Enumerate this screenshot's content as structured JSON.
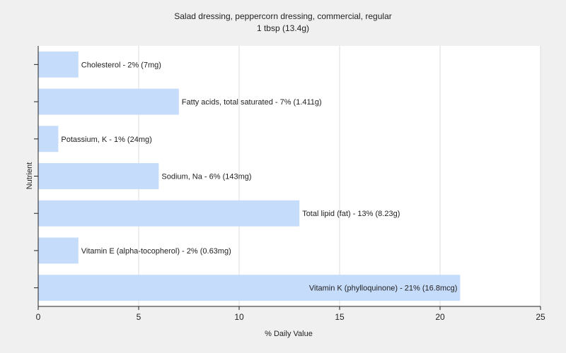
{
  "chart_data": {
    "type": "bar",
    "orientation": "horizontal",
    "title": "Salad dressing, peppercorn dressing, commercial, regular",
    "subtitle": "1 tbsp (13.4g)",
    "xlabel": "% Daily Value",
    "ylabel": "Nutrient",
    "xlim": [
      0,
      25
    ],
    "xticks": [
      0,
      5,
      10,
      15,
      20,
      25
    ],
    "grid": true,
    "bar_color": "#c6dcfb",
    "categories": [
      "Cholesterol",
      "Fatty acids, total saturated",
      "Potassium, K",
      "Sodium, Na",
      "Total lipid (fat)",
      "Vitamin E (alpha-tocopherol)",
      "Vitamin K (phylloquinone)"
    ],
    "values": [
      2,
      7,
      1,
      6,
      13,
      2,
      21
    ],
    "labels": [
      "Cholesterol - 2% (7mg)",
      "Fatty acids, total saturated - 7% (1.411g)",
      "Potassium, K - 1% (24mg)",
      "Sodium, Na - 6% (143mg)",
      "Total lipid (fat) - 13% (8.23g)",
      "Vitamin E (alpha-tocopherol) - 2% (0.63mg)",
      "Vitamin K (phylloquinone) - 21% (16.8mcg)"
    ]
  }
}
